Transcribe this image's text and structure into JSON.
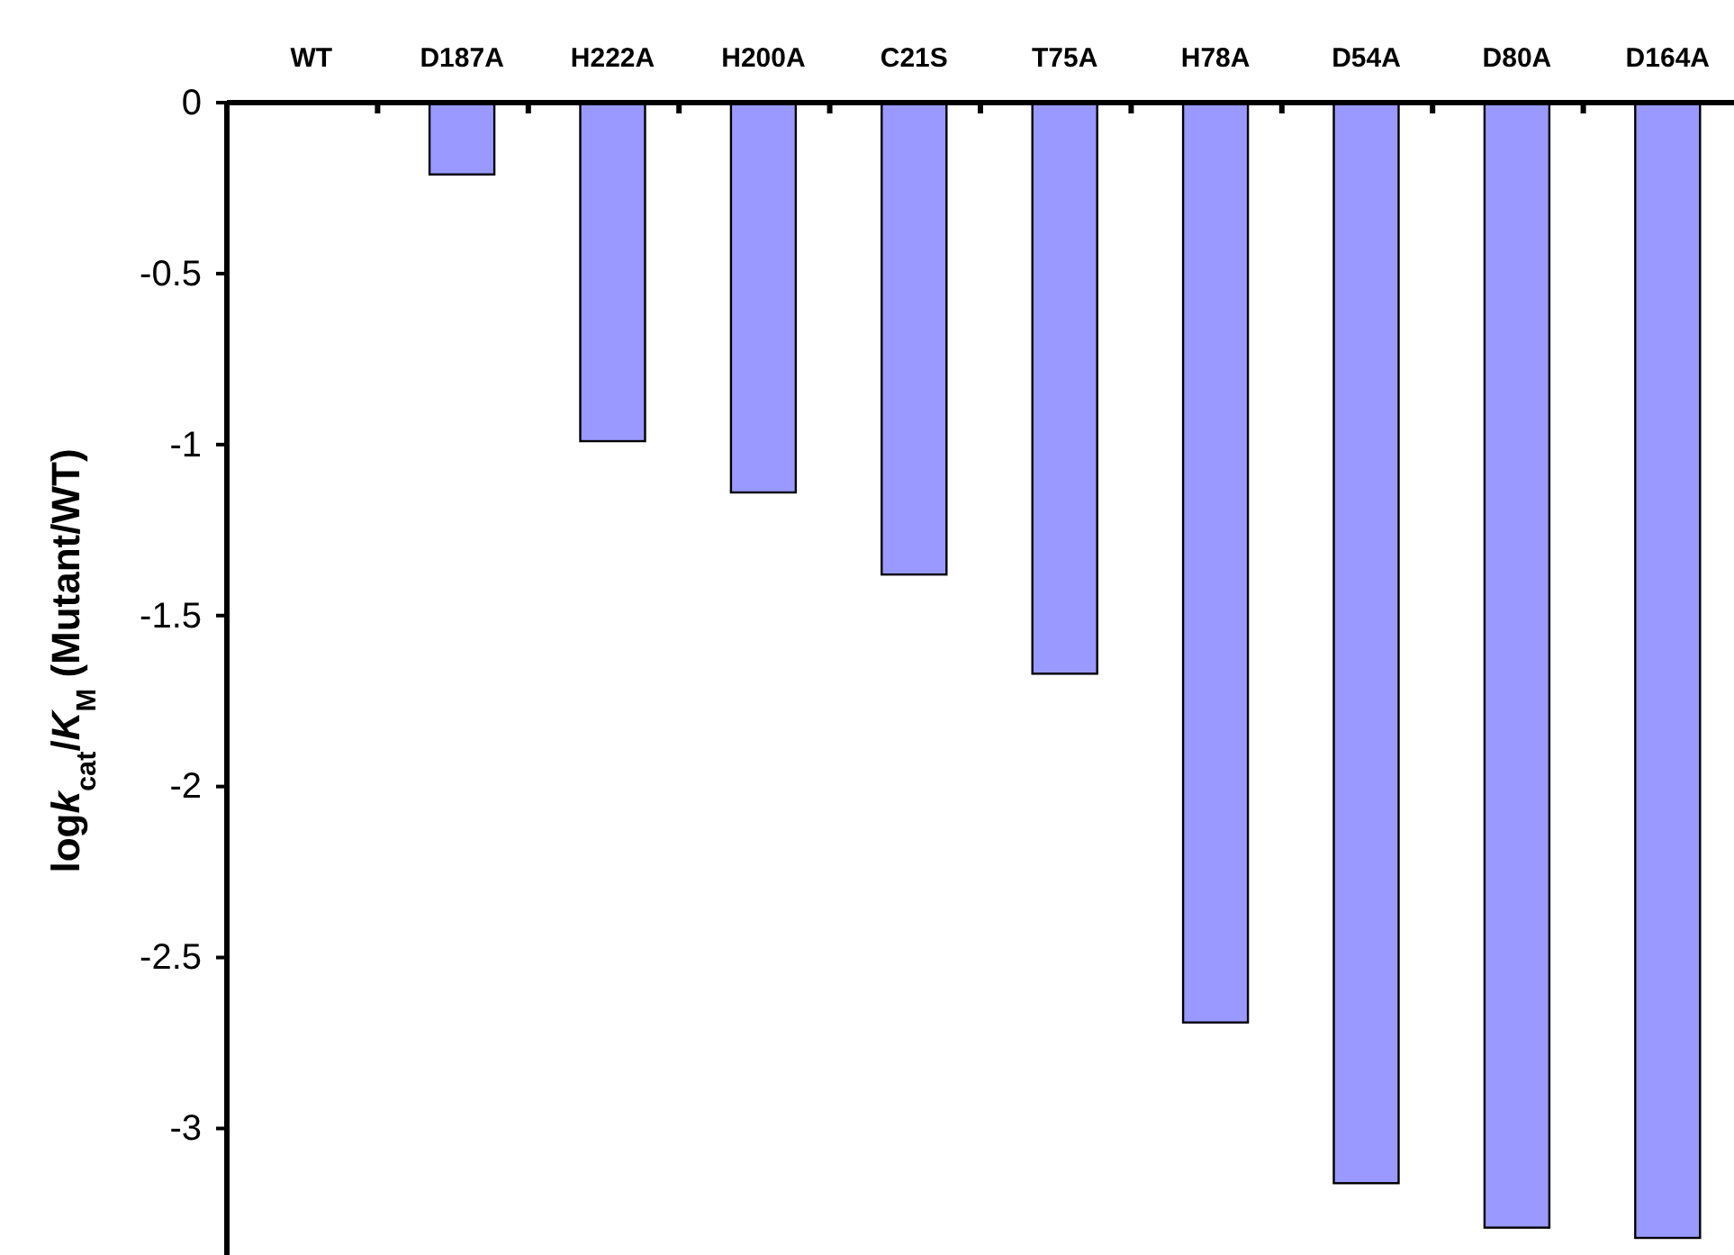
{
  "chart_data": {
    "type": "bar",
    "ylabel": "logk$_{cat}$/K$_{M}$ (Mutant/WT)",
    "categories": [
      "WT",
      "D187A",
      "H222A",
      "H200A",
      "C21S",
      "T75A",
      "H78A",
      "D54A",
      "D80A",
      "D164A"
    ],
    "values": [
      0,
      -0.21,
      -0.99,
      -1.14,
      -1.38,
      -1.67,
      -2.69,
      -3.16,
      -3.29,
      -3.32
    ],
    "color": "#9999ff",
    "ylim": [
      -3.37,
      0
    ],
    "yticks": [
      0,
      -0.5,
      -1,
      -1.5,
      -2,
      -2.5,
      -3
    ],
    "grid": false
  }
}
